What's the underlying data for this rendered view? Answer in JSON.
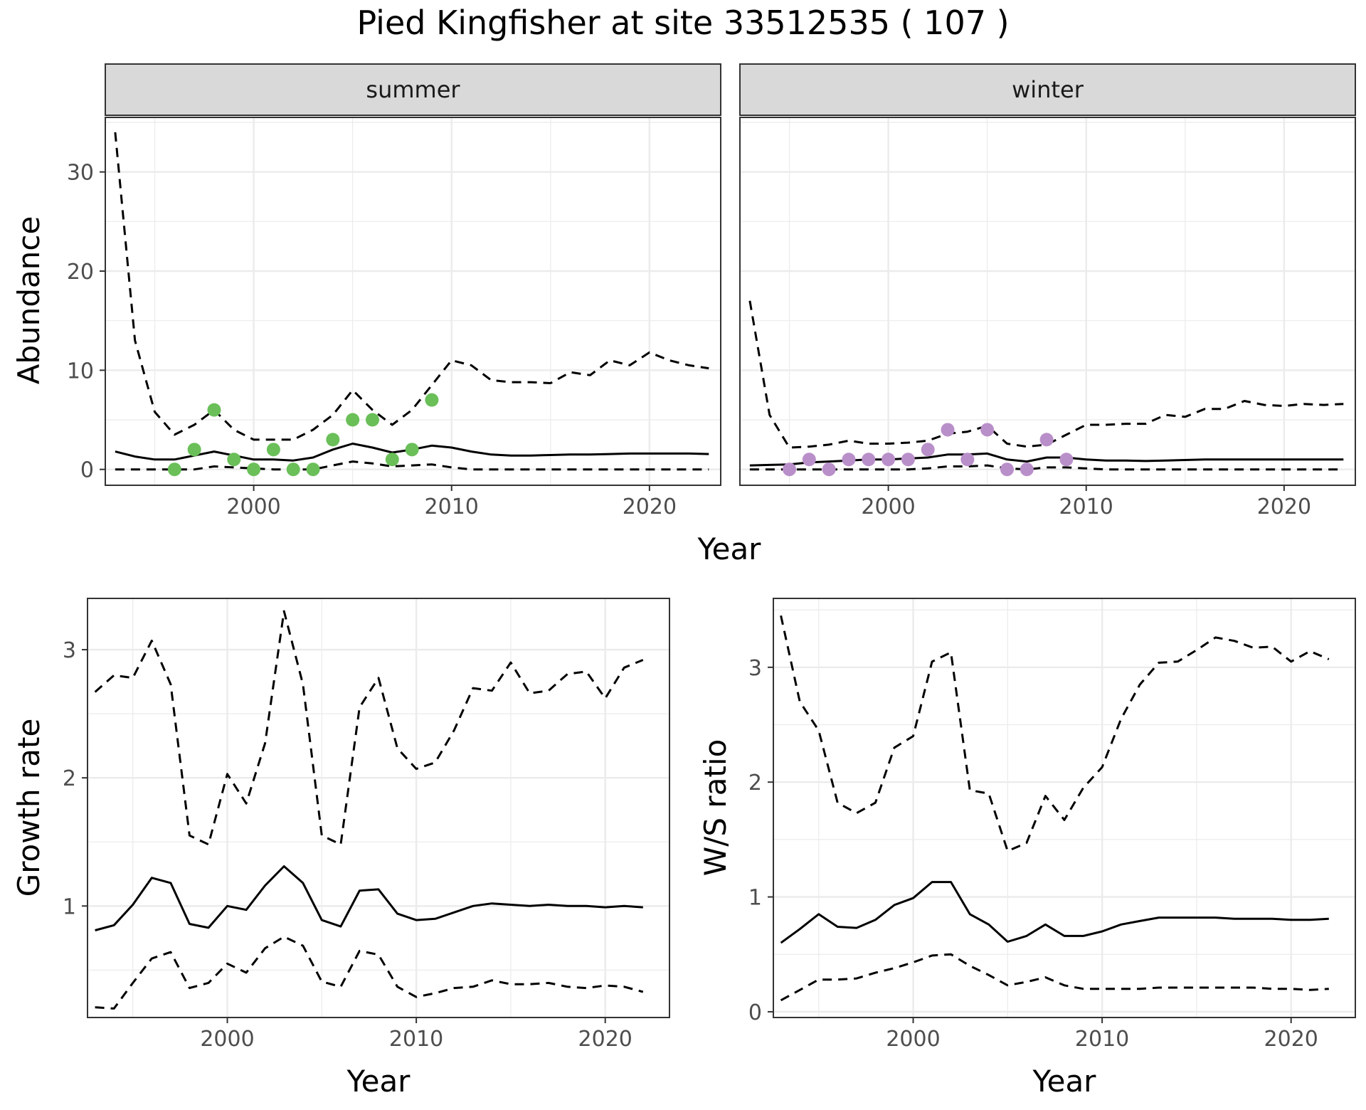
{
  "title": "Pied Kingfisher at site 33512535 ( 107 )",
  "colors": {
    "summer_points": "#6abf59",
    "winter_points": "#b98fc9",
    "lines": "#000000",
    "strip_fill": "#d9d9d9",
    "grid": "#ebebeb"
  },
  "chart_data": [
    {
      "type": "line",
      "panel": "summer",
      "facet_label": "summer",
      "xlabel": "Year",
      "ylabel": "Abundance",
      "xlim": [
        1992.5,
        2023.6
      ],
      "ylim": [
        -1.6,
        35.5
      ],
      "x_ticks": [
        2000,
        2010,
        2020
      ],
      "y_ticks": [
        0,
        10,
        20,
        30
      ],
      "grid": true,
      "series": [
        {
          "style": "solid",
          "x": [
            1993,
            1994,
            1995,
            1996,
            1997,
            1998,
            1999,
            2000,
            2001,
            2002,
            2003,
            2004,
            2005,
            2006,
            2007,
            2008,
            2009,
            2010,
            2011,
            2012,
            2013,
            2014,
            2015,
            2016,
            2017,
            2018,
            2019,
            2020,
            2021,
            2022,
            2023
          ],
          "y": [
            1.8,
            1.3,
            1.0,
            1.0,
            1.4,
            1.8,
            1.4,
            1.0,
            1.0,
            0.9,
            1.2,
            2.0,
            2.6,
            2.2,
            1.7,
            2.0,
            2.4,
            2.2,
            1.8,
            1.5,
            1.4,
            1.4,
            1.45,
            1.5,
            1.5,
            1.55,
            1.6,
            1.6,
            1.6,
            1.6,
            1.55
          ]
        },
        {
          "style": "dashed",
          "x": [
            1993,
            1994,
            1995,
            1996,
            1997,
            1998,
            1999,
            2000,
            2001,
            2002,
            2003,
            2004,
            2005,
            2006,
            2007,
            2008,
            2009,
            2010,
            2011,
            2012,
            2013,
            2014,
            2015,
            2016,
            2017,
            2018,
            2019,
            2020,
            2021,
            2022,
            2023
          ],
          "y": [
            34.0,
            13.0,
            5.8,
            3.5,
            4.5,
            6.0,
            4.0,
            3.0,
            3.0,
            3.0,
            4.0,
            5.5,
            8.0,
            6.0,
            4.5,
            6.0,
            8.5,
            11.0,
            10.5,
            9.0,
            8.8,
            8.8,
            8.7,
            9.8,
            9.5,
            11.0,
            10.5,
            11.8,
            11.0,
            10.5,
            10.2
          ]
        },
        {
          "style": "dashed",
          "x": [
            1993,
            1994,
            1995,
            1996,
            1997,
            1998,
            1999,
            2000,
            2001,
            2002,
            2003,
            2004,
            2005,
            2006,
            2007,
            2008,
            2009,
            2010,
            2011,
            2012,
            2013,
            2014,
            2015,
            2016,
            2017,
            2018,
            2019,
            2020,
            2021,
            2022,
            2023
          ],
          "y": [
            0.0,
            0.0,
            0.0,
            0.0,
            0.0,
            0.3,
            0.2,
            0.1,
            0.0,
            0.0,
            0.0,
            0.4,
            0.8,
            0.6,
            0.3,
            0.4,
            0.5,
            0.2,
            0.0,
            0.0,
            0.0,
            0.0,
            0.0,
            0.0,
            0.0,
            0.0,
            0.0,
            0.0,
            0.0,
            0.0,
            0.0
          ]
        }
      ],
      "points": {
        "x": [
          1996,
          1997,
          1998,
          1999,
          2000,
          2001,
          2002,
          2003,
          2004,
          2005,
          2006,
          2007,
          2008,
          2009
        ],
        "y": [
          0,
          2,
          6,
          1,
          0,
          2,
          0,
          0,
          3,
          5,
          5,
          1,
          2,
          7
        ]
      }
    },
    {
      "type": "line",
      "panel": "winter",
      "facet_label": "winter",
      "xlabel": "Year",
      "ylabel": "",
      "xlim": [
        1992.5,
        2023.6
      ],
      "ylim": [
        -1.6,
        35.5
      ],
      "x_ticks": [
        2000,
        2010,
        2020
      ],
      "y_ticks": [
        0,
        10,
        20,
        30
      ],
      "grid": true,
      "series": [
        {
          "style": "solid",
          "x": [
            1993,
            1994,
            1995,
            1996,
            1997,
            1998,
            1999,
            2000,
            2001,
            2002,
            2003,
            2004,
            2005,
            2006,
            2007,
            2008,
            2009,
            2010,
            2011,
            2012,
            2013,
            2014,
            2015,
            2016,
            2017,
            2018,
            2019,
            2020,
            2021,
            2022,
            2023
          ],
          "y": [
            0.4,
            0.45,
            0.5,
            0.7,
            0.8,
            0.9,
            1.0,
            1.0,
            1.1,
            1.2,
            1.5,
            1.5,
            1.6,
            1.0,
            0.8,
            1.2,
            1.2,
            1.0,
            0.9,
            0.9,
            0.85,
            0.9,
            0.95,
            1.0,
            1.0,
            1.0,
            1.0,
            1.0,
            1.0,
            1.0,
            1.0
          ]
        },
        {
          "style": "dashed",
          "x": [
            1993,
            1994,
            1995,
            1996,
            1997,
            1998,
            1999,
            2000,
            2001,
            2002,
            2003,
            2004,
            2005,
            2006,
            2007,
            2008,
            2009,
            2010,
            2011,
            2012,
            2013,
            2014,
            2015,
            2016,
            2017,
            2018,
            2019,
            2020,
            2021,
            2022,
            2023
          ],
          "y": [
            17.0,
            5.5,
            2.2,
            2.3,
            2.5,
            2.9,
            2.6,
            2.6,
            2.7,
            2.9,
            3.6,
            3.8,
            4.4,
            2.6,
            2.3,
            2.5,
            3.5,
            4.5,
            4.5,
            4.6,
            4.6,
            5.5,
            5.3,
            6.1,
            6.1,
            6.9,
            6.5,
            6.4,
            6.6,
            6.5,
            6.6
          ]
        },
        {
          "style": "dashed",
          "x": [
            1993,
            1994,
            1995,
            1996,
            1997,
            1998,
            1999,
            2000,
            2001,
            2002,
            2003,
            2004,
            2005,
            2006,
            2007,
            2008,
            2009,
            2010,
            2011,
            2012,
            2013,
            2014,
            2015,
            2016,
            2017,
            2018,
            2019,
            2020,
            2021,
            2022,
            2023
          ],
          "y": [
            0.0,
            0.0,
            0.0,
            0.0,
            0.0,
            0.0,
            0.0,
            0.0,
            0.0,
            0.1,
            0.3,
            0.3,
            0.4,
            0.1,
            0.0,
            0.2,
            0.2,
            0.1,
            0.0,
            0.0,
            0.0,
            0.0,
            0.0,
            0.0,
            0.0,
            0.0,
            0.0,
            0.0,
            0.0,
            0.0,
            0.0
          ]
        }
      ],
      "points": {
        "x": [
          1995,
          1996,
          1997,
          1998,
          1999,
          2000,
          2001,
          2002,
          2003,
          2004,
          2005,
          2006,
          2007,
          2008,
          2009
        ],
        "y": [
          0,
          1,
          0,
          1,
          1,
          1,
          1,
          2,
          4,
          1,
          4,
          0,
          0,
          3,
          1
        ]
      }
    },
    {
      "type": "line",
      "panel": "growth",
      "xlabel": "Year",
      "ylabel": "Growth rate",
      "xlim": [
        1992.6,
        2023.4
      ],
      "ylim": [
        0.13,
        3.4
      ],
      "x_ticks": [
        2000,
        2010,
        2020
      ],
      "y_ticks": [
        1,
        2,
        3
      ],
      "grid": true,
      "series": [
        {
          "style": "solid",
          "x": [
            1993,
            1994,
            1995,
            1996,
            1997,
            1998,
            1999,
            2000,
            2001,
            2002,
            2003,
            2004,
            2005,
            2006,
            2007,
            2008,
            2009,
            2010,
            2011,
            2012,
            2013,
            2014,
            2015,
            2016,
            2017,
            2018,
            2019,
            2020,
            2021,
            2022
          ],
          "y": [
            0.81,
            0.85,
            1.01,
            1.22,
            1.18,
            0.86,
            0.83,
            1.0,
            0.97,
            1.16,
            1.31,
            1.18,
            0.89,
            0.84,
            1.12,
            1.13,
            0.94,
            0.89,
            0.9,
            0.95,
            1.0,
            1.02,
            1.01,
            1.0,
            1.01,
            1.0,
            1.0,
            0.99,
            1.0,
            0.99
          ]
        },
        {
          "style": "dashed",
          "x": [
            1993,
            1994,
            1995,
            1996,
            1997,
            1998,
            1999,
            2000,
            2001,
            2002,
            2003,
            2004,
            2005,
            2006,
            2007,
            2008,
            2009,
            2010,
            2011,
            2012,
            2013,
            2014,
            2015,
            2016,
            2017,
            2018,
            2019,
            2020,
            2021,
            2022
          ],
          "y": [
            2.67,
            2.8,
            2.78,
            3.07,
            2.73,
            1.55,
            1.48,
            2.03,
            1.8,
            2.27,
            3.3,
            2.73,
            1.55,
            1.48,
            2.55,
            2.78,
            2.23,
            2.07,
            2.12,
            2.37,
            2.7,
            2.68,
            2.9,
            2.66,
            2.68,
            2.81,
            2.83,
            2.62,
            2.86,
            2.92
          ]
        },
        {
          "style": "dashed",
          "x": [
            1993,
            1994,
            1995,
            1996,
            1997,
            1998,
            1999,
            2000,
            2001,
            2002,
            2003,
            2004,
            2005,
            2006,
            2007,
            2008,
            2009,
            2010,
            2011,
            2012,
            2013,
            2014,
            2015,
            2016,
            2017,
            2018,
            2019,
            2020,
            2021,
            2022
          ],
          "y": [
            0.21,
            0.2,
            0.4,
            0.59,
            0.64,
            0.36,
            0.4,
            0.55,
            0.48,
            0.67,
            0.76,
            0.69,
            0.41,
            0.37,
            0.65,
            0.62,
            0.37,
            0.29,
            0.32,
            0.36,
            0.37,
            0.42,
            0.39,
            0.39,
            0.4,
            0.37,
            0.36,
            0.38,
            0.37,
            0.33
          ]
        }
      ]
    },
    {
      "type": "line",
      "panel": "ratio",
      "xlabel": "Year",
      "ylabel": "W/S ratio",
      "xlim": [
        1992.6,
        2023.4
      ],
      "ylim": [
        -0.05,
        3.6
      ],
      "x_ticks": [
        2000,
        2010,
        2020
      ],
      "y_ticks": [
        0,
        1,
        2,
        3
      ],
      "grid": true,
      "series": [
        {
          "style": "solid",
          "x": [
            1993,
            1994,
            1995,
            1996,
            1997,
            1998,
            1999,
            2000,
            2001,
            2002,
            2003,
            2004,
            2005,
            2006,
            2007,
            2008,
            2009,
            2010,
            2011,
            2012,
            2013,
            2014,
            2015,
            2016,
            2017,
            2018,
            2019,
            2020,
            2021,
            2022
          ],
          "y": [
            0.6,
            0.72,
            0.85,
            0.74,
            0.73,
            0.8,
            0.93,
            0.99,
            1.13,
            1.13,
            0.85,
            0.76,
            0.61,
            0.66,
            0.76,
            0.66,
            0.66,
            0.7,
            0.76,
            0.79,
            0.82,
            0.82,
            0.82,
            0.82,
            0.81,
            0.81,
            0.81,
            0.8,
            0.8,
            0.81
          ]
        },
        {
          "style": "dashed",
          "x": [
            1993,
            1994,
            1995,
            1996,
            1997,
            1998,
            1999,
            2000,
            2001,
            2002,
            2003,
            2004,
            2005,
            2006,
            2007,
            2008,
            2009,
            2010,
            2011,
            2012,
            2013,
            2014,
            2015,
            2016,
            2017,
            2018,
            2019,
            2020,
            2021,
            2022
          ],
          "y": [
            3.45,
            2.7,
            2.45,
            1.82,
            1.73,
            1.82,
            2.3,
            2.4,
            3.05,
            3.13,
            1.93,
            1.9,
            1.4,
            1.47,
            1.88,
            1.67,
            1.95,
            2.13,
            2.55,
            2.85,
            3.04,
            3.05,
            3.15,
            3.26,
            3.23,
            3.17,
            3.18,
            3.05,
            3.14,
            3.07
          ]
        },
        {
          "style": "dashed",
          "x": [
            1993,
            1994,
            1995,
            1996,
            1997,
            1998,
            1999,
            2000,
            2001,
            2002,
            2003,
            2004,
            2005,
            2006,
            2007,
            2008,
            2009,
            2010,
            2011,
            2012,
            2013,
            2014,
            2015,
            2016,
            2017,
            2018,
            2019,
            2020,
            2021,
            2022
          ],
          "y": [
            0.1,
            0.19,
            0.28,
            0.28,
            0.29,
            0.34,
            0.38,
            0.43,
            0.49,
            0.5,
            0.4,
            0.32,
            0.23,
            0.26,
            0.3,
            0.23,
            0.2,
            0.2,
            0.2,
            0.2,
            0.21,
            0.21,
            0.21,
            0.21,
            0.21,
            0.21,
            0.2,
            0.2,
            0.19,
            0.2
          ]
        }
      ]
    }
  ]
}
